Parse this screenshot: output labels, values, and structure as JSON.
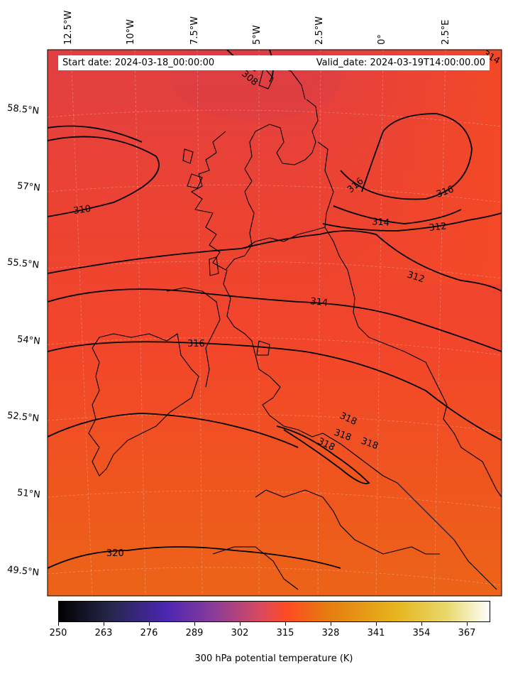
{
  "header": {
    "start_date": "Start date: 2024-03-18_00:00:00",
    "valid_date": "Valid_date: 2024-03-19T14:00:00.00"
  },
  "longitude_labels": [
    "12.5°W",
    "10°W",
    "7.5°W",
    "5°W",
    "2.5°W",
    "0°",
    "2.5°E"
  ],
  "latitude_labels": [
    "58.5°N",
    "57°N",
    "55.5°N",
    "54°N",
    "52.5°N",
    "51°N",
    "49.5°N"
  ],
  "contour_labels": [
    "308",
    "310",
    "312",
    "312",
    "314",
    "314",
    "314",
    "316",
    "316",
    "316",
    "318",
    "318",
    "318",
    "318",
    "320"
  ],
  "colorbar": {
    "ticks": [
      "250",
      "263",
      "276",
      "289",
      "302",
      "315",
      "328",
      "341",
      "354",
      "367"
    ],
    "label": "300 hPa potential temperature (K)",
    "range": [
      250,
      373
    ],
    "colormap": "CMRmap"
  },
  "colors": {
    "field_north": "#e8423a",
    "field_mid": "#f2452a",
    "field_south": "#ec6218",
    "contour": "#000000"
  }
}
